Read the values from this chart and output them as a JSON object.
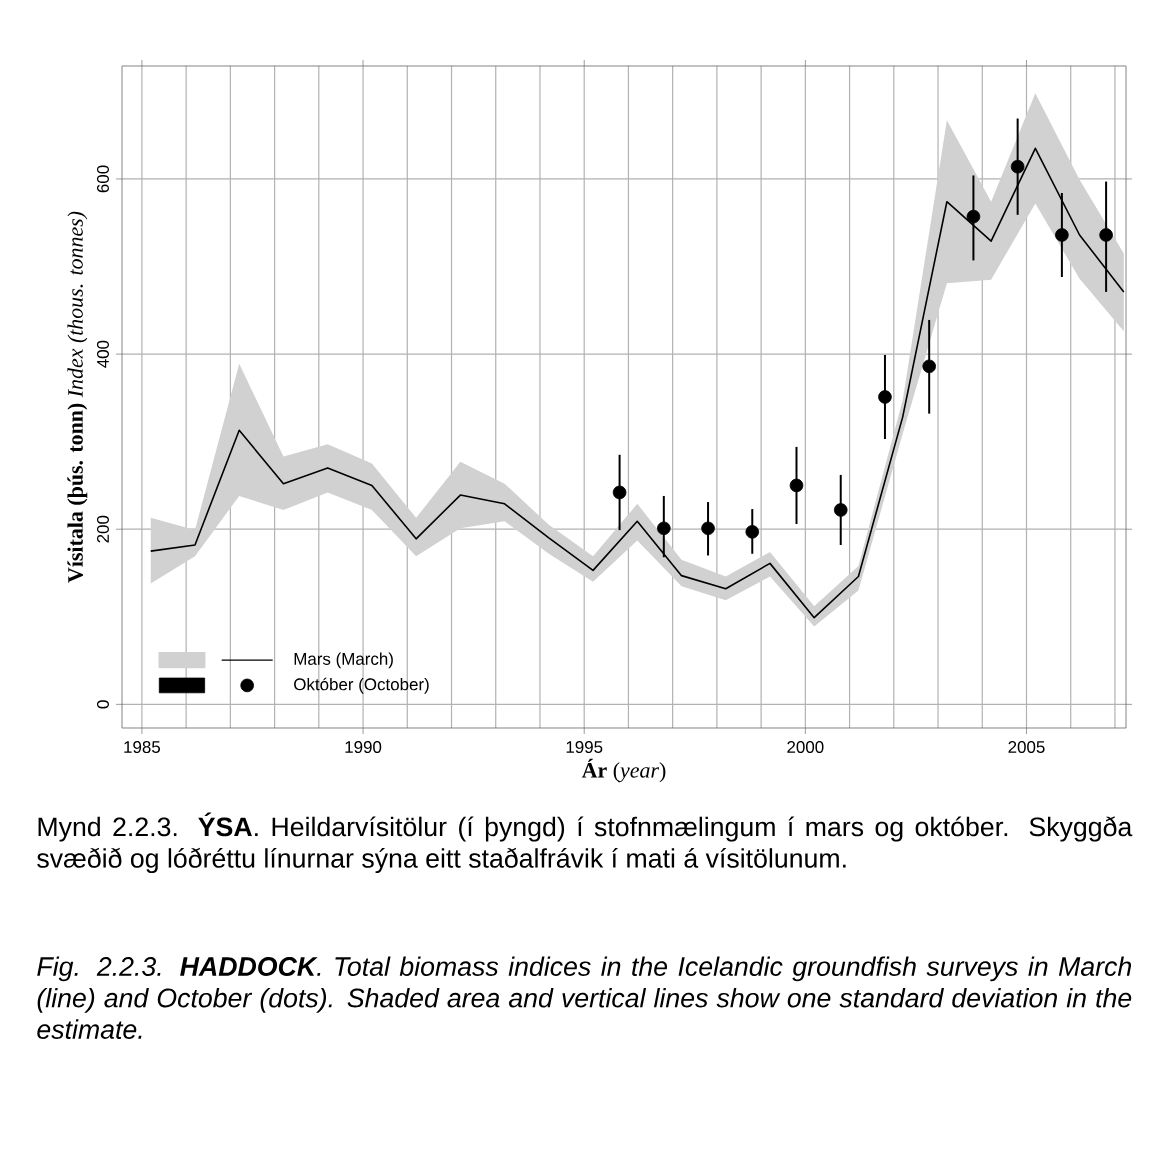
{
  "chart_data": {
    "type": "line",
    "xlabel": "**Ár** (*year*)",
    "ylabel": "**Vísitala (þús. tonn)** *Index (thous. tonnes)*",
    "xlim": [
      1984.55,
      2007.25
    ],
    "ylim": [
      -27,
      729
    ],
    "xticks": [
      1985,
      {
        "value": 1986,
        "label": null
      },
      {
        "value": 1987,
        "label": null
      },
      {
        "value": 1988,
        "label": null
      },
      {
        "value": 1989,
        "label": null
      },
      1990,
      {
        "value": 1991,
        "label": null
      },
      {
        "value": 1992,
        "label": null
      },
      {
        "value": 1993,
        "label": null
      },
      {
        "value": 1994,
        "label": null
      },
      1995,
      {
        "value": 1996,
        "label": null
      },
      {
        "value": 1997,
        "label": null
      },
      {
        "value": 1998,
        "label": null
      },
      {
        "value": 1999,
        "label": null
      },
      2000,
      {
        "value": 2001,
        "label": null
      },
      {
        "value": 2002,
        "label": null
      },
      {
        "value": 2003,
        "label": null
      },
      {
        "value": 2004,
        "label": null
      },
      2005,
      {
        "value": 2006,
        "label": null
      },
      {
        "value": 2007,
        "label": null
      }
    ],
    "yticks": [
      0,
      200,
      400,
      600
    ],
    "grid": true,
    "legend": "bottom left",
    "series": [
      {
        "name": "Mars (March)",
        "type": "line",
        "color": "#000000",
        "marker": "none",
        "line_style": "solid",
        "x": [
          1985.2,
          1986.2,
          1987.2,
          1988.2,
          1989.2,
          1990.2,
          1991.2,
          1992.2,
          1993.2,
          1994.2,
          1995.2,
          1996.2,
          1997.2,
          1998.2,
          1999.2,
          2000.2,
          2001.2,
          2002.2,
          2003.2,
          2004.2,
          2005.2,
          2006.2,
          2007.2
        ],
        "values": [
          175,
          182,
          313,
          252,
          270,
          250,
          189,
          239,
          229,
          190,
          153,
          209,
          147,
          132,
          161,
          99,
          146,
          328,
          574,
          529,
          635,
          536,
          471
        ],
        "lower": [
          138,
          169,
          238,
          222,
          242,
          222,
          169,
          201,
          209,
          172,
          140,
          187,
          135,
          119,
          146,
          89,
          130,
          309,
          481,
          485,
          572,
          486,
          426
        ],
        "upper": [
          213,
          199,
          389,
          283,
          297,
          275,
          213,
          277,
          252,
          205,
          169,
          229,
          165,
          146,
          174,
          112,
          158,
          347,
          667,
          574,
          698,
          599,
          515
        ]
      },
      {
        "name": "Október (October)",
        "type": "scatter",
        "color": "#000000",
        "marker": "circle",
        "x": [
          1995.8,
          1996.8,
          1997.8,
          1998.8,
          1999.8,
          2000.8,
          2001.8,
          2002.8,
          2003.8,
          2004.8,
          2005.8,
          2006.8
        ],
        "values": [
          242,
          201,
          201,
          197,
          250,
          222,
          351,
          386,
          557,
          614,
          536,
          536
        ],
        "errors": [
          [
            199,
            285
          ],
          [
            168,
            238
          ],
          [
            170,
            231
          ],
          [
            172,
            223
          ],
          [
            206,
            294
          ],
          [
            182,
            262
          ],
          [
            303,
            399
          ],
          [
            332,
            439
          ],
          [
            507,
            604
          ],
          [
            559,
            669
          ],
          [
            488,
            584
          ],
          [
            471,
            597
          ]
        ]
      }
    ],
    "annotations": [
      "Mynd 2.2.3. **ÝSA**. Heildarvísitölur (í þyngd) í stofnmælingum í mars og október. Skyggða svæðið og lóðréttu línurnar sýna eitt staðalfrávik í mati á vísitölunum.",
      "Fig. 2.2.3. **HADDOCK**. Total biomass indices in the Icelandic groundfish surveys in March (line) and October (dots). Shaded area and vertical lines show one standard deviation in the estimate."
    ]
  }
}
